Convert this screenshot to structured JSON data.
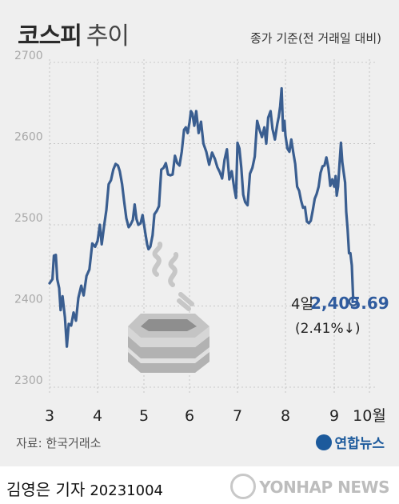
{
  "header": {
    "title": "코스피",
    "subtitle": "추이",
    "unit": "종가 기준(전 거래일 대비)"
  },
  "colors": {
    "line": "#3a5e90",
    "accent": "#2f5b9e",
    "background": "#efefef",
    "grid": "#cccccc"
  },
  "chart_data": {
    "type": "line",
    "yticks": [
      2300,
      2400,
      2500,
      2600,
      2700
    ],
    "ylim": [
      2300,
      2700
    ],
    "xticks": [
      "3",
      "4",
      "5",
      "6",
      "7",
      "8",
      "9",
      "10월"
    ],
    "xlim": [
      3.0,
      10.15
    ],
    "grid": "vertical dotted at month starts, horizontal dotted at y ticks",
    "series": [
      {
        "values": [
          [
            3.0,
            2428
          ],
          [
            3.06,
            2433
          ],
          [
            3.09,
            2462
          ],
          [
            3.13,
            2463
          ],
          [
            3.16,
            2433
          ],
          [
            3.2,
            2422
          ],
          [
            3.23,
            2395
          ],
          [
            3.27,
            2412
          ],
          [
            3.32,
            2386
          ],
          [
            3.36,
            2350
          ],
          [
            3.4,
            2378
          ],
          [
            3.45,
            2376
          ],
          [
            3.5,
            2392
          ],
          [
            3.55,
            2382
          ],
          [
            3.6,
            2410
          ],
          [
            3.66,
            2425
          ],
          [
            3.71,
            2413
          ],
          [
            3.77,
            2437
          ],
          [
            3.83,
            2445
          ],
          [
            3.89,
            2477
          ],
          [
            3.95,
            2473
          ],
          [
            4.0,
            2480
          ],
          [
            4.05,
            2500
          ],
          [
            4.09,
            2476
          ],
          [
            4.14,
            2498
          ],
          [
            4.19,
            2518
          ],
          [
            4.24,
            2550
          ],
          [
            4.29,
            2555
          ],
          [
            4.34,
            2568
          ],
          [
            4.39,
            2575
          ],
          [
            4.44,
            2573
          ],
          [
            4.48,
            2566
          ],
          [
            4.53,
            2550
          ],
          [
            4.57,
            2530
          ],
          [
            4.62,
            2508
          ],
          [
            4.67,
            2497
          ],
          [
            4.71,
            2500
          ],
          [
            4.76,
            2506
          ],
          [
            4.8,
            2525
          ],
          [
            4.84,
            2507
          ],
          [
            4.88,
            2500
          ],
          [
            4.93,
            2502
          ],
          [
            4.97,
            2512
          ],
          [
            5.0,
            2501
          ],
          [
            5.03,
            2490
          ],
          [
            5.07,
            2476
          ],
          [
            5.1,
            2470
          ],
          [
            5.14,
            2473
          ],
          [
            5.19,
            2487
          ],
          [
            5.23,
            2513
          ],
          [
            5.28,
            2517
          ],
          [
            5.33,
            2523
          ],
          [
            5.38,
            2568
          ],
          [
            5.43,
            2570
          ],
          [
            5.48,
            2576
          ],
          [
            5.53,
            2562
          ],
          [
            5.58,
            2561
          ],
          [
            5.63,
            2562
          ],
          [
            5.68,
            2585
          ],
          [
            5.73,
            2576
          ],
          [
            5.78,
            2573
          ],
          [
            5.83,
            2590
          ],
          [
            5.88,
            2617
          ],
          [
            5.92,
            2620
          ],
          [
            5.96,
            2613
          ],
          [
            6.0,
            2626
          ],
          [
            6.03,
            2640
          ],
          [
            6.06,
            2637
          ],
          [
            6.1,
            2622
          ],
          [
            6.14,
            2640
          ],
          [
            6.19,
            2613
          ],
          [
            6.24,
            2627
          ],
          [
            6.29,
            2600
          ],
          [
            6.35,
            2590
          ],
          [
            6.41,
            2574
          ],
          [
            6.47,
            2589
          ],
          [
            6.53,
            2581
          ],
          [
            6.58,
            2571
          ],
          [
            6.63,
            2565
          ],
          [
            6.68,
            2557
          ],
          [
            6.73,
            2580
          ],
          [
            6.78,
            2593
          ],
          [
            6.83,
            2556
          ],
          [
            6.88,
            2566
          ],
          [
            6.93,
            2546
          ],
          [
            6.97,
            2533
          ],
          [
            7.0,
            2601
          ],
          [
            7.04,
            2594
          ],
          [
            7.08,
            2570
          ],
          [
            7.12,
            2537
          ],
          [
            7.16,
            2528
          ],
          [
            7.21,
            2524
          ],
          [
            7.26,
            2563
          ],
          [
            7.31,
            2570
          ],
          [
            7.36,
            2584
          ],
          [
            7.41,
            2628
          ],
          [
            7.46,
            2617
          ],
          [
            7.51,
            2608
          ],
          [
            7.56,
            2620
          ],
          [
            7.6,
            2600
          ],
          [
            7.64,
            2632
          ],
          [
            7.69,
            2640
          ],
          [
            7.73,
            2618
          ],
          [
            7.78,
            2605
          ],
          [
            7.83,
            2624
          ],
          [
            7.86,
            2633
          ],
          [
            7.89,
            2646
          ],
          [
            7.92,
            2668
          ],
          [
            7.95,
            2616
          ],
          [
            7.98,
            2628
          ],
          [
            8.0,
            2610
          ],
          [
            8.04,
            2594
          ],
          [
            8.08,
            2590
          ],
          [
            8.12,
            2605
          ],
          [
            8.16,
            2589
          ],
          [
            8.2,
            2575
          ],
          [
            8.24,
            2547
          ],
          [
            8.28,
            2542
          ],
          [
            8.32,
            2530
          ],
          [
            8.36,
            2521
          ],
          [
            8.4,
            2522
          ],
          [
            8.44,
            2504
          ],
          [
            8.48,
            2502
          ],
          [
            8.52,
            2505
          ],
          [
            8.56,
            2518
          ],
          [
            8.6,
            2532
          ],
          [
            8.64,
            2538
          ],
          [
            8.68,
            2547
          ],
          [
            8.72,
            2564
          ],
          [
            8.76,
            2572
          ],
          [
            8.8,
            2573
          ],
          [
            8.84,
            2583
          ],
          [
            8.88,
            2570
          ],
          [
            8.92,
            2548
          ],
          [
            8.96,
            2556
          ],
          [
            9.0,
            2547
          ],
          [
            9.04,
            2560
          ],
          [
            9.07,
            2536
          ],
          [
            9.11,
            2547
          ],
          [
            9.15,
            2575
          ],
          [
            9.19,
            2601
          ],
          [
            9.23,
            2577
          ],
          [
            9.27,
            2564
          ],
          [
            9.31,
            2552
          ],
          [
            9.34,
            2516
          ],
          [
            9.38,
            2495
          ],
          [
            9.42,
            2465
          ],
          [
            9.46,
            2465
          ],
          [
            9.5,
            2450
          ],
          [
            9.54,
            2405.69
          ]
        ]
      }
    ],
    "annotation": {
      "day_label": "4일",
      "value_label": "2,405.69",
      "change_label": "(2.41%↓)"
    }
  },
  "footer": {
    "source": "자료: 한국거래소",
    "logo_text": "연합뉴스",
    "byline": "김영은 기자",
    "date": "20231004",
    "watermark": "YONHAP NEWS"
  }
}
